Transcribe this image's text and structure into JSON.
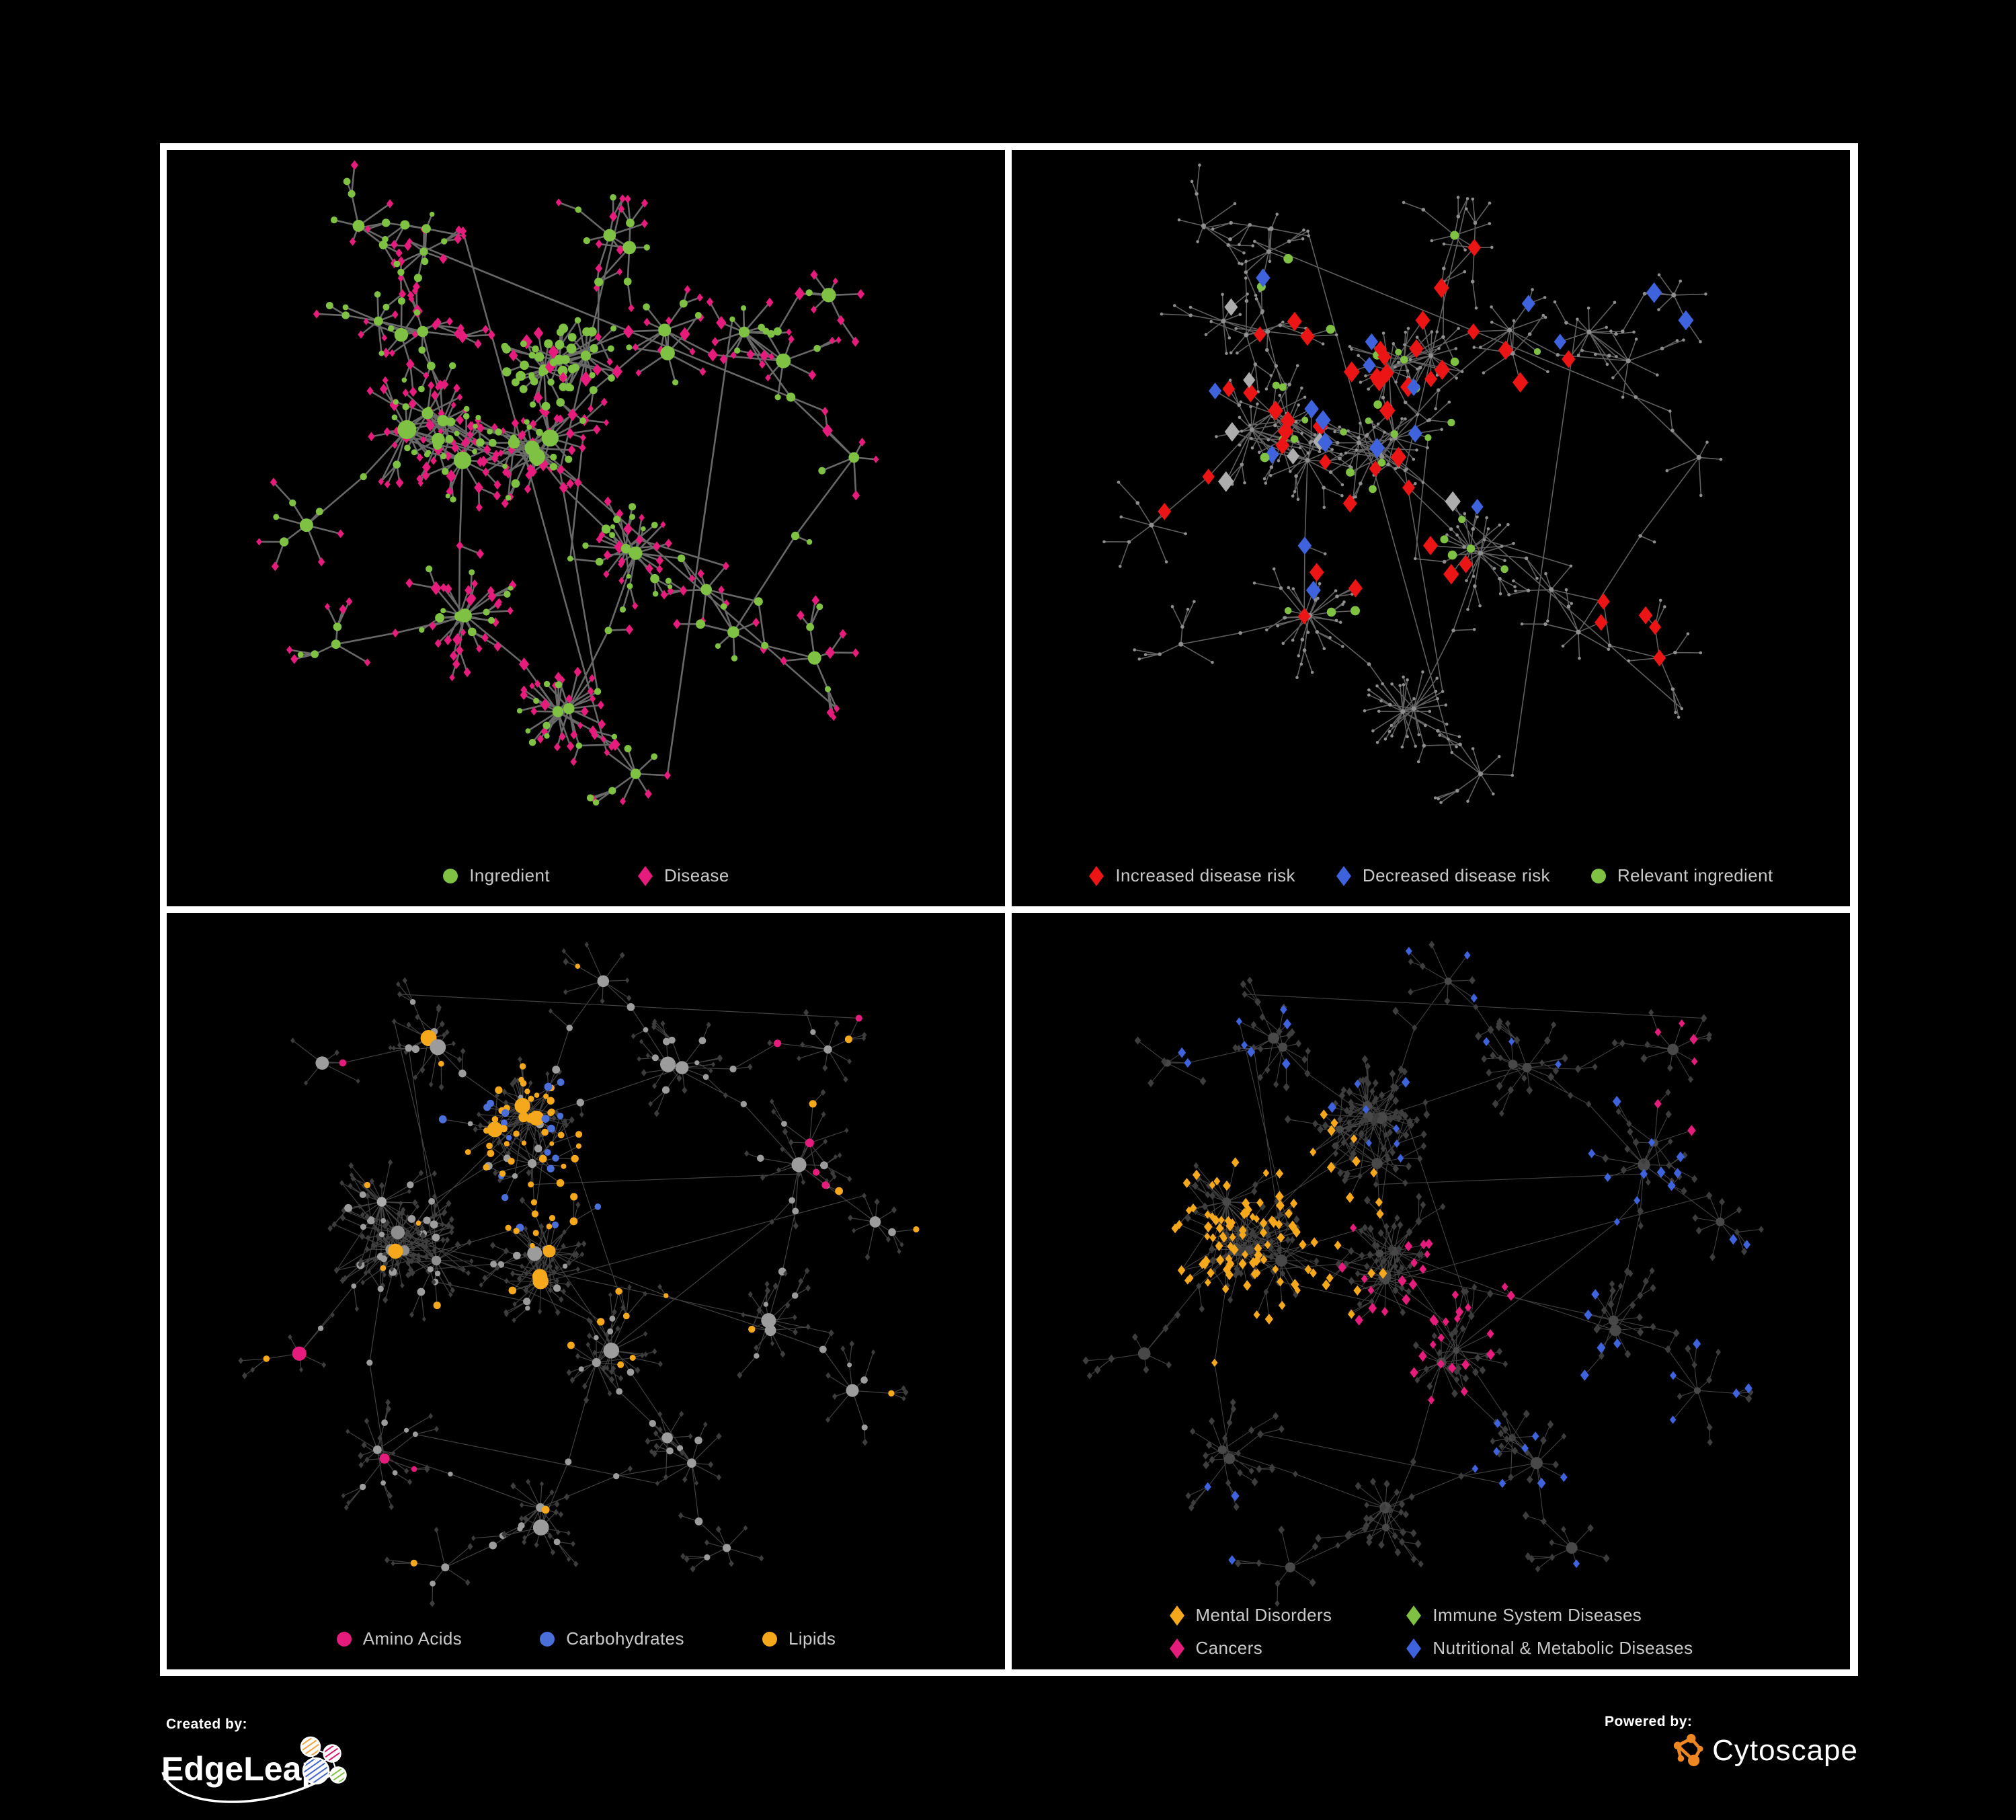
{
  "figure": {
    "background": "#000000",
    "frame_color": "#FFFFFF",
    "legend_text_color": "#C9C9C9"
  },
  "panels": [
    {
      "id": "ingredient-disease-network",
      "legend": [
        {
          "label": "Ingredient",
          "shape": "circle",
          "color": "#7FC142"
        },
        {
          "label": "Disease",
          "shape": "diamond",
          "color": "#E61C7C"
        }
      ]
    },
    {
      "id": "disease-risk-network",
      "legend": [
        {
          "label": "Increased disease risk",
          "shape": "diamond",
          "color": "#EC1515"
        },
        {
          "label": "Decreased disease risk",
          "shape": "diamond",
          "color": "#3E63DD"
        },
        {
          "label": "Relevant ingredient",
          "shape": "circle",
          "color": "#7FC142"
        }
      ]
    },
    {
      "id": "nutrient-class-network",
      "legend": [
        {
          "label": "Amino Acids",
          "shape": "circle",
          "color": "#E61C7C"
        },
        {
          "label": "Carbohydrates",
          "shape": "circle",
          "color": "#4A6FD9"
        },
        {
          "label": "Lipids",
          "shape": "circle",
          "color": "#F5A81C"
        }
      ]
    },
    {
      "id": "disease-class-network",
      "legend": [
        {
          "label": "Mental Disorders",
          "shape": "diamond",
          "color": "#F5A81C"
        },
        {
          "label": "Immune System Diseases",
          "shape": "diamond",
          "color": "#7FC142"
        },
        {
          "label": "Cancers",
          "shape": "diamond",
          "color": "#E61C7C"
        },
        {
          "label": "Nutritional & Metabolic Diseases",
          "shape": "diamond",
          "color": "#3E63DD"
        }
      ]
    }
  ],
  "network_palette": {
    "edge_top": "#6E6E6E",
    "edge_bottom": "#9A9A9A",
    "neutral_dot": "#8E8E8E",
    "neutral_diamond_light": "#ADADAD",
    "neutral_diamond_dark": "#3D3D3D",
    "neutral_circle_gray": "#9C9C9C",
    "neutral_circle_light": "#ABABAB",
    "hub_dark_circle": "#484848"
  },
  "footer": {
    "created_by": {
      "label": "Created by:",
      "brand": "EdgeLeap",
      "logo_colors": [
        "#F2A33C",
        "#D6186E",
        "#4465C8",
        "#7FC241"
      ]
    },
    "powered_by": {
      "label": "Powered by:",
      "brand": "Cytoscape",
      "logo_color": "#EE8722"
    }
  }
}
